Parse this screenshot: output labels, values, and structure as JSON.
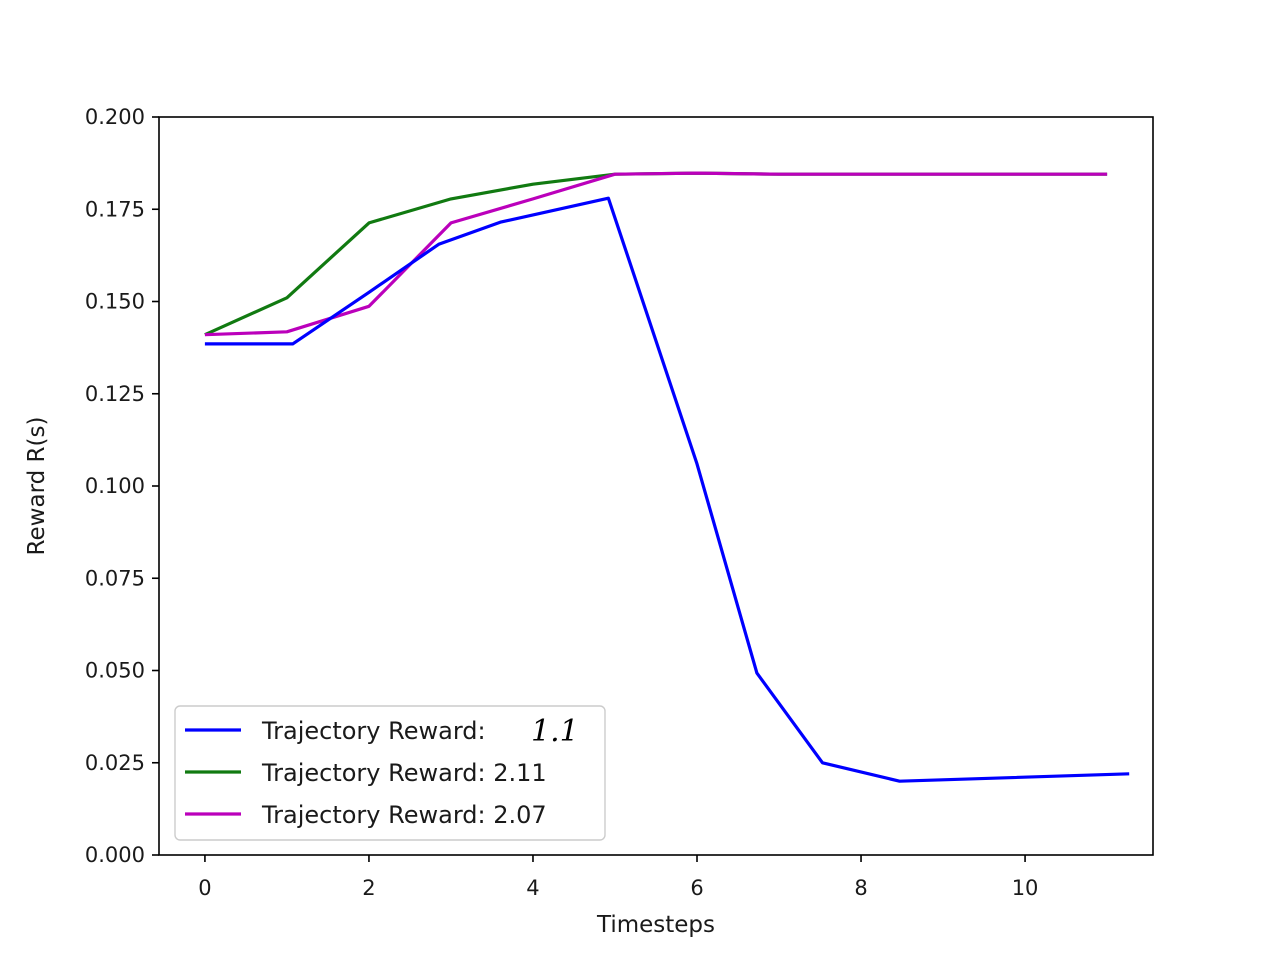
{
  "chart_data": {
    "type": "line",
    "title": "",
    "xlabel": "Timesteps",
    "ylabel": "Reward R(s)",
    "xlim": [
      -0.56,
      11.56
    ],
    "ylim": [
      0.0,
      0.2
    ],
    "xticks": [
      0,
      2,
      4,
      6,
      8,
      10
    ],
    "xtick_labels": [
      "0",
      "2",
      "4",
      "6",
      "8",
      "10"
    ],
    "yticks": [
      0.0,
      0.025,
      0.05,
      0.075,
      0.1,
      0.125,
      0.15,
      0.175,
      0.2
    ],
    "ytick_labels": [
      "0.000",
      "0.025",
      "0.050",
      "0.075",
      "0.100",
      "0.125",
      "0.150",
      "0.175",
      "0.200"
    ],
    "grid": false,
    "legend_position": "lower-left",
    "series": [
      {
        "name": "Trajectory Reward: 1.1",
        "legend_prefix": "Trajectory Reward: ",
        "legend_value": "1.1",
        "legend_value_handwritten": true,
        "color": "#0000ff",
        "points": [
          [
            0,
            0.1385
          ],
          [
            1.07,
            0.1385
          ],
          [
            2.0,
            0.1525
          ],
          [
            2.85,
            0.1655
          ],
          [
            3.6,
            0.1715
          ],
          [
            4.92,
            0.178
          ],
          [
            6.0,
            0.106
          ],
          [
            6.73,
            0.0493
          ],
          [
            7.53,
            0.025
          ],
          [
            8.47,
            0.02
          ],
          [
            11.27,
            0.022
          ]
        ]
      },
      {
        "name": "Trajectory Reward: 2.11",
        "legend_prefix": "Trajectory Reward: ",
        "legend_value": "2.11",
        "legend_value_handwritten": false,
        "color": "#117a11",
        "points": [
          [
            0,
            0.141
          ],
          [
            1.0,
            0.151
          ],
          [
            2.0,
            0.1713
          ],
          [
            3.0,
            0.1778
          ],
          [
            4.0,
            0.1818
          ],
          [
            5.0,
            0.1845
          ],
          [
            6.0,
            0.1848
          ],
          [
            7.0,
            0.1845
          ],
          [
            8.0,
            0.1845
          ],
          [
            9.0,
            0.1845
          ],
          [
            10.0,
            0.1845
          ],
          [
            11.0,
            0.1845
          ]
        ]
      },
      {
        "name": "Trajectory Reward: 2.07",
        "legend_prefix": "Trajectory Reward: ",
        "legend_value": "2.07",
        "legend_value_handwritten": false,
        "color": "#bb00bb",
        "points": [
          [
            0,
            0.141
          ],
          [
            1.0,
            0.1418
          ],
          [
            2.0,
            0.1487
          ],
          [
            3.0,
            0.1713
          ],
          [
            4.0,
            0.1778
          ],
          [
            5.0,
            0.1845
          ],
          [
            6.0,
            0.1848
          ],
          [
            7.0,
            0.1845
          ],
          [
            8.0,
            0.1845
          ],
          [
            9.0,
            0.1845
          ],
          [
            10.0,
            0.1845
          ],
          [
            11.0,
            0.1845
          ]
        ]
      }
    ]
  }
}
